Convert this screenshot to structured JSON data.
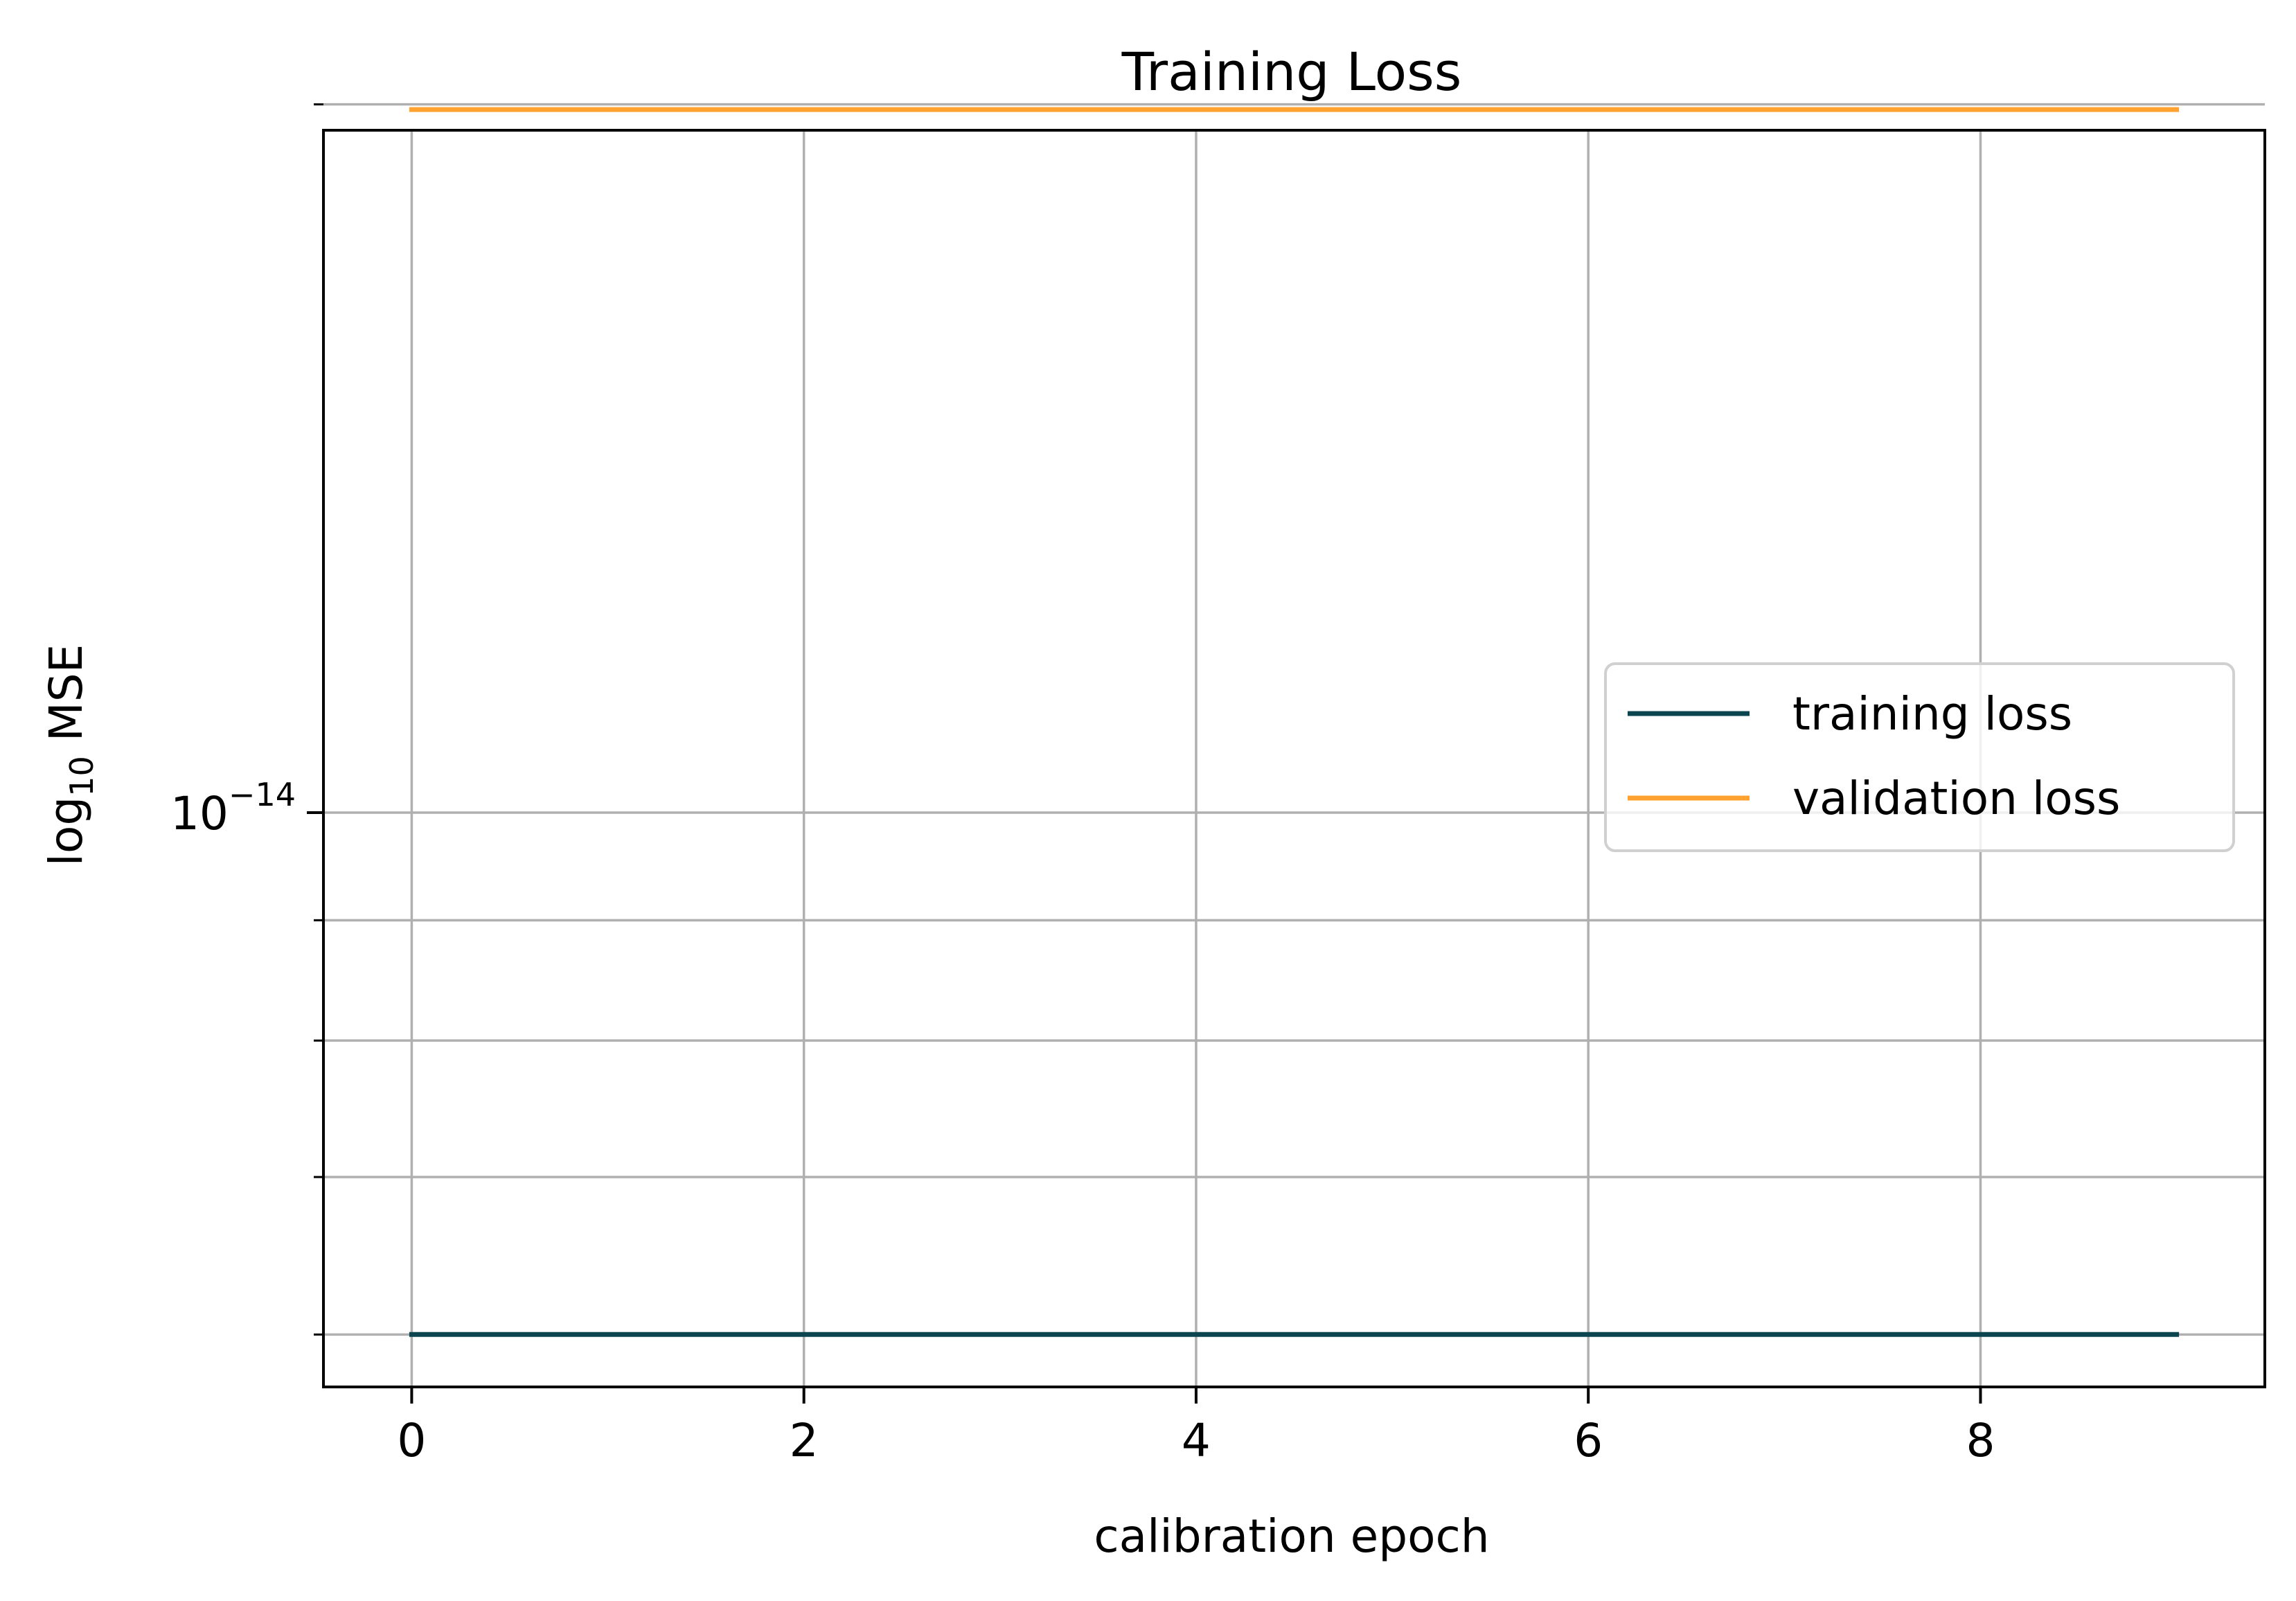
{
  "chart_data": {
    "type": "line",
    "title": "Training Loss",
    "xlabel": "calibration epoch",
    "ylabel_main": "log",
    "ylabel_sub": "10",
    "ylabel_rest": " MSE",
    "x": [
      0,
      1,
      2,
      3,
      4,
      5,
      6,
      7,
      8,
      9
    ],
    "xlim": [
      -0.45,
      9.45
    ],
    "xticks": [
      0,
      2,
      4,
      6,
      8
    ],
    "yscale": "log",
    "ylim": [
      5.7e-15,
      1.95e-14
    ],
    "ytick_major": {
      "value": 1e-14,
      "base": "10",
      "exponent": "−14"
    },
    "ytick_minor": [
      6e-15,
      7e-15,
      8e-15,
      9e-15,
      2e-14
    ],
    "grid": true,
    "legend": {
      "position": "center-right"
    },
    "series": [
      {
        "name": "training loss",
        "color": "#0b4550",
        "values": [
          6e-15,
          6e-15,
          6e-15,
          6e-15,
          6e-15,
          6e-15,
          6e-15,
          6e-15,
          6e-15,
          6e-15
        ]
      },
      {
        "name": "validation loss",
        "color": "#ffa230",
        "values": [
          1.99e-14,
          1.99e-14,
          1.99e-14,
          1.99e-14,
          1.99e-14,
          1.99e-14,
          1.99e-14,
          1.99e-14,
          1.99e-14,
          1.99e-14
        ]
      }
    ]
  }
}
